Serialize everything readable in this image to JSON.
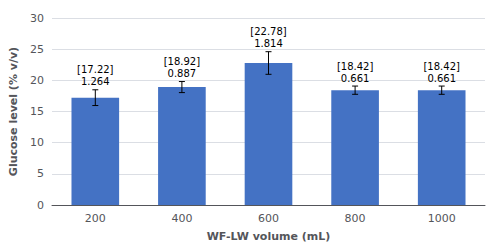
{
  "chart_data": {
    "type": "bar",
    "categories": [
      "200",
      "400",
      "600",
      "800",
      "1000"
    ],
    "values": [
      17.22,
      18.92,
      22.78,
      18.42,
      18.42
    ],
    "errors": [
      1.264,
      0.887,
      1.814,
      0.661,
      0.661
    ],
    "value_labels": [
      "[17.22]",
      "[18.92]",
      "[22.78]",
      "[18.42]",
      "[18.42]"
    ],
    "error_labels": [
      "1.264",
      "0.887",
      "1.814",
      "0.661",
      "0.661"
    ],
    "color": "#4472C4",
    "xlabel": "WF-LW volume (mL)",
    "ylabel": "Glucose level (% v/v)",
    "ylim": [
      0,
      30
    ],
    "yticks": [
      0,
      5,
      10,
      15,
      20,
      25,
      30
    ],
    "grid": true
  }
}
